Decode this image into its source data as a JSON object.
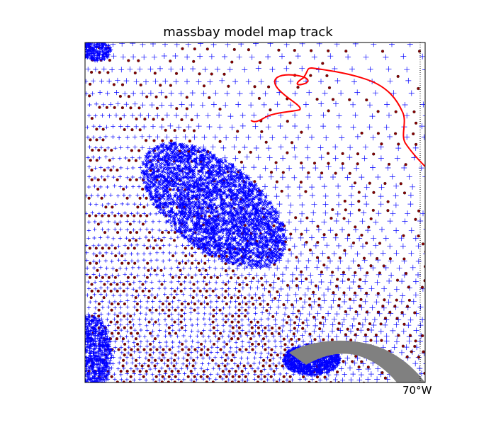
{
  "figure": {
    "title": "massbay model map track",
    "lon_tick_label": "70°W"
  },
  "map": {
    "grid_node_marker": "+",
    "grid_node_color": "#0000ff",
    "element_center_marker": "o",
    "element_center_color": "#8b0000",
    "track_color": "#ff0000",
    "land_color": "#808080",
    "meridian_style": "dotted"
  }
}
